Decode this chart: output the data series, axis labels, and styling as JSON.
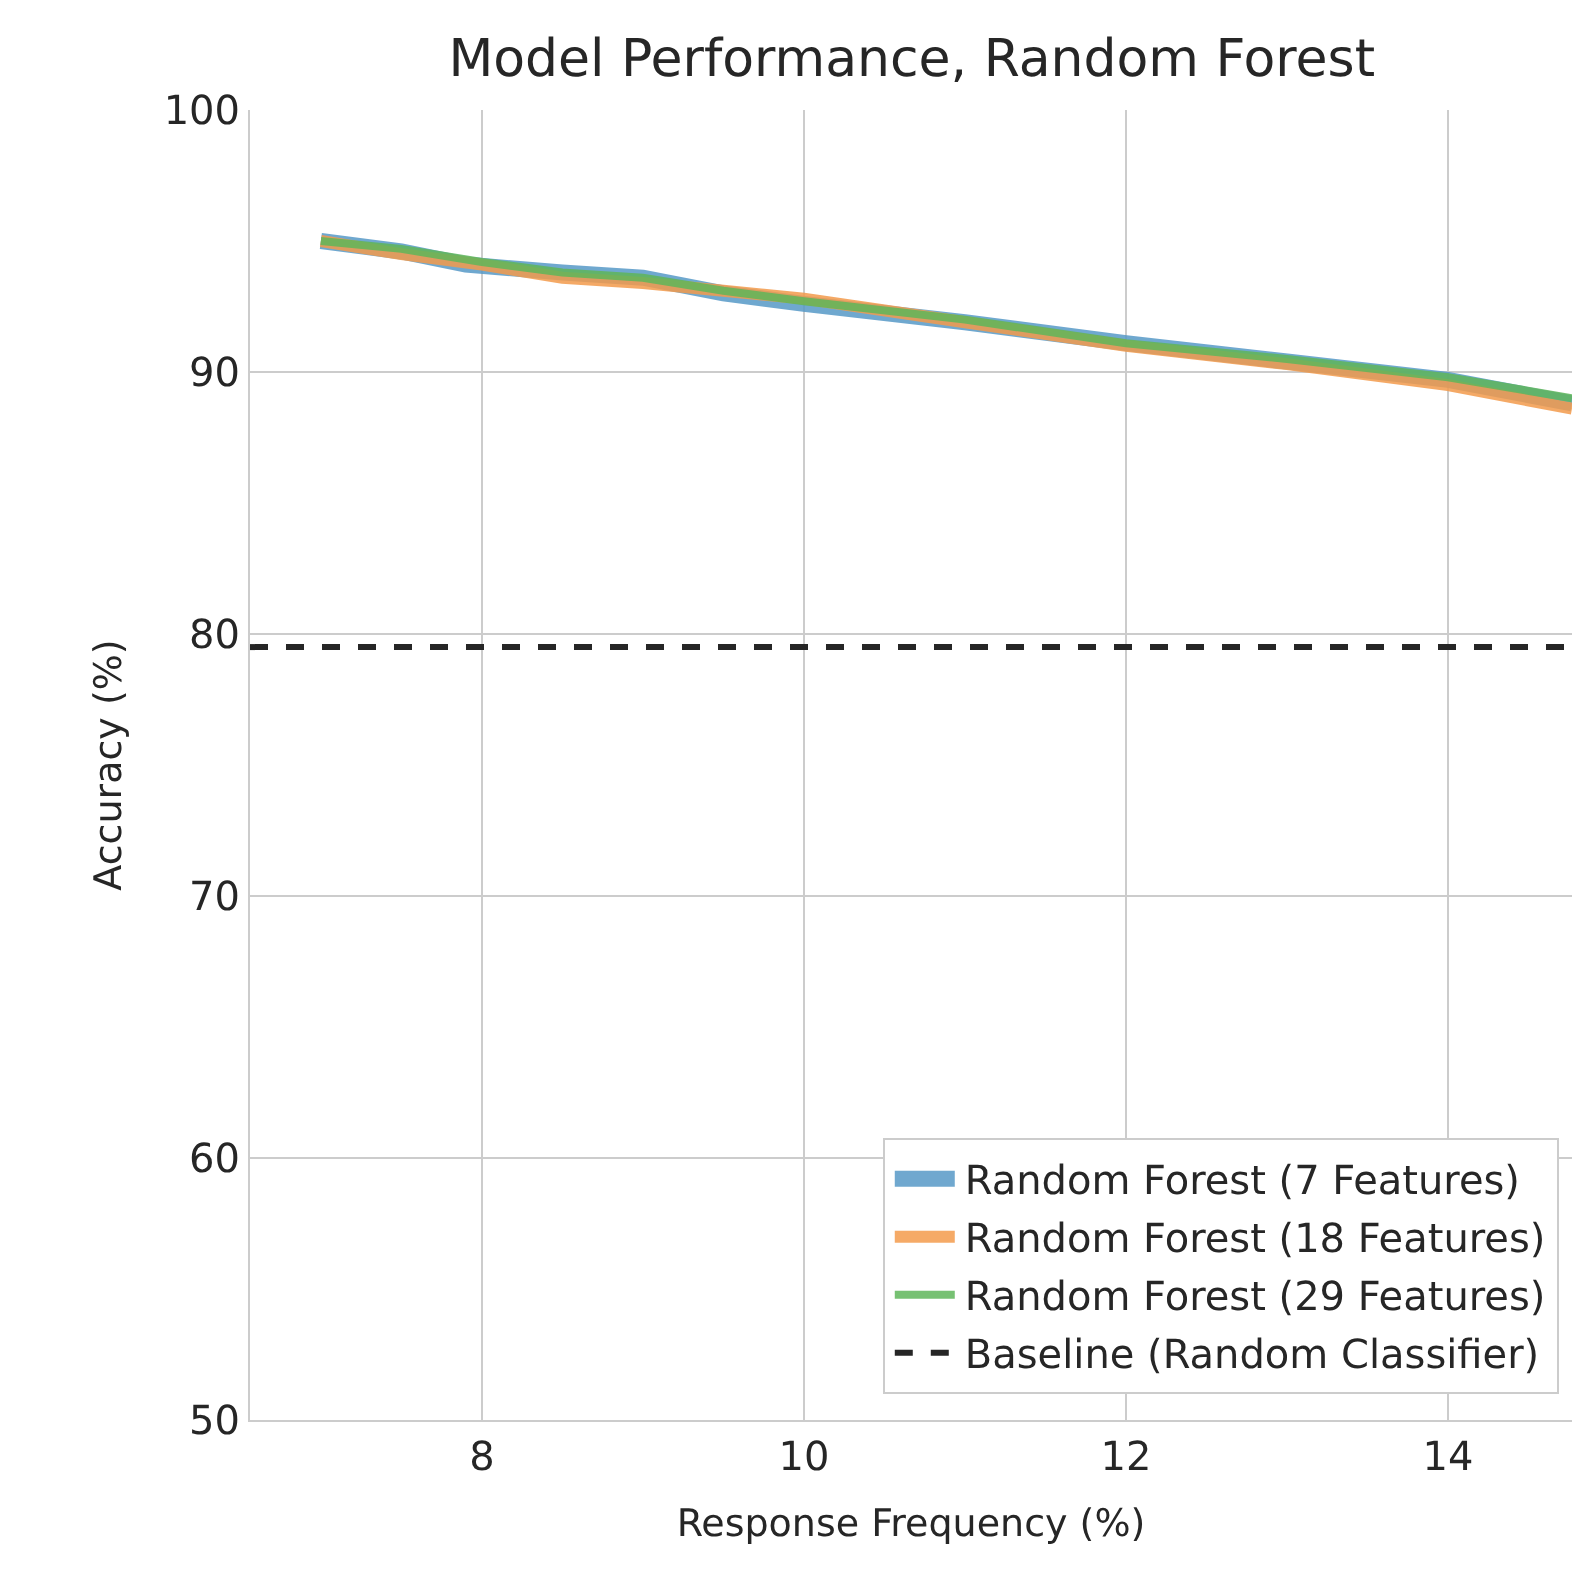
{
  "chart_data": {
    "type": "line",
    "title": "Model Performance, Random Forest",
    "xlabel": "Response Frequency (%)",
    "ylabel": "Accuracy (%)",
    "xlim": [
      6.56,
      14.77
    ],
    "ylim": [
      50,
      100
    ],
    "xticks": [
      8,
      10,
      12,
      14
    ],
    "yticks": [
      50,
      60,
      70,
      80,
      90,
      100
    ],
    "grid": true,
    "legend": "bottom right",
    "marker": "none",
    "line_style": "solid",
    "series": [
      {
        "name": "Random Forest (7 Features)",
        "color": "#5799c7",
        "x": [
          7.0,
          7.5,
          7.9,
          8.5,
          9.0,
          9.5,
          10.0,
          11.0,
          12.0,
          13.0,
          14.0,
          14.77
        ],
        "values": [
          95.0,
          94.6,
          94.1,
          93.8,
          93.6,
          93.0,
          92.6,
          91.9,
          91.1,
          90.4,
          89.7,
          88.8
        ]
      },
      {
        "name": "Random Forest (18 Features)",
        "color": "#f39b4c",
        "x": [
          7.0,
          7.5,
          8.0,
          8.5,
          9.0,
          9.5,
          10.0,
          11.0,
          12.0,
          13.0,
          14.0,
          14.77
        ],
        "values": [
          95.0,
          94.5,
          94.1,
          93.6,
          93.4,
          93.1,
          92.8,
          91.9,
          91.0,
          90.3,
          89.5,
          88.6
        ]
      },
      {
        "name": "Random Forest (29 Features)",
        "color": "#5fb65a",
        "x": [
          7.0,
          7.5,
          8.0,
          8.5,
          9.0,
          9.5,
          10.0,
          11.0,
          12.0,
          13.0,
          14.0,
          14.77
        ],
        "values": [
          95.0,
          94.7,
          94.2,
          93.8,
          93.6,
          93.1,
          92.7,
          92.0,
          91.1,
          90.5,
          89.8,
          89.0
        ]
      }
    ],
    "ref_lines": [
      {
        "axis": "y",
        "value": 79.5,
        "label": "Baseline (Random Classifier)",
        "color": "#262626",
        "line_style": "dashed"
      }
    ]
  }
}
